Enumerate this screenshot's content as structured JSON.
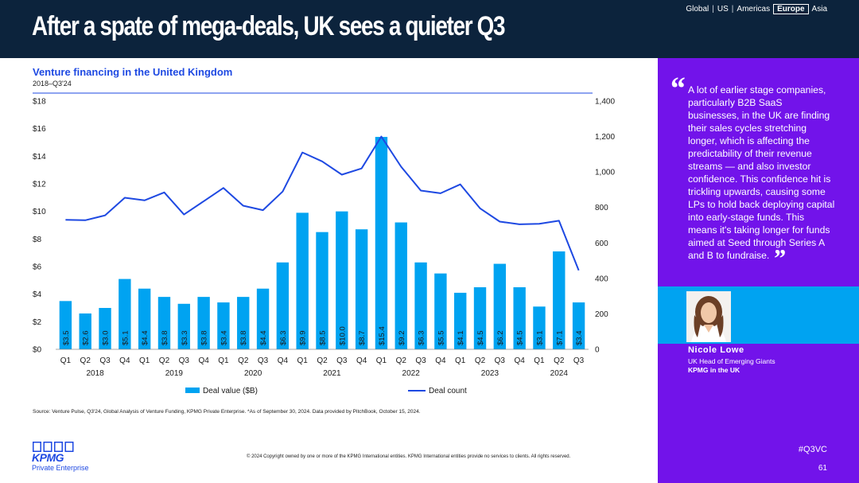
{
  "header": {
    "title": "After a spate of mega-deals, UK sees a quieter Q3",
    "regions": [
      "Global",
      "US",
      "Americas",
      "Europe",
      "Asia"
    ],
    "active_region": "Europe"
  },
  "chart_data": {
    "type": "bar",
    "title": "Venture financing in the United Kingdom",
    "subtitle": "2018–Q3'24",
    "quarters": [
      "Q1",
      "Q2",
      "Q3",
      "Q4",
      "Q1",
      "Q2",
      "Q3",
      "Q4",
      "Q1",
      "Q2",
      "Q3",
      "Q4",
      "Q1",
      "Q2",
      "Q3",
      "Q4",
      "Q1",
      "Q2",
      "Q3",
      "Q4",
      "Q1",
      "Q2",
      "Q3",
      "Q4",
      "Q1",
      "Q2",
      "Q3"
    ],
    "years": [
      "2018",
      "2019",
      "2020",
      "2021",
      "2022",
      "2023",
      "2024"
    ],
    "series": [
      {
        "name": "Deal value ($B)",
        "type": "bar",
        "axis": "left",
        "color": "#00a3f1",
        "values": [
          3.5,
          2.6,
          3.0,
          5.1,
          4.4,
          3.8,
          3.3,
          3.8,
          3.4,
          3.8,
          4.4,
          6.3,
          9.9,
          8.5,
          10.0,
          8.7,
          15.4,
          9.2,
          6.3,
          5.5,
          4.1,
          4.5,
          6.2,
          4.5,
          3.1,
          7.1,
          3.4
        ],
        "labels": [
          "$3.5",
          "$2.6",
          "$3.0",
          "$5.1",
          "$4.4",
          "$3.8",
          "$3.3",
          "$3.8",
          "$3.4",
          "$3.8",
          "$4.4",
          "$6.3",
          "$9.9",
          "$8.5",
          "$10.0",
          "$8.7",
          "$15.4",
          "$9.2",
          "$6.3",
          "$5.5",
          "$4.1",
          "$4.5",
          "$6.2",
          "$4.5",
          "$3.1",
          "$7.1",
          "$3.4"
        ]
      },
      {
        "name": "Deal count",
        "type": "line",
        "axis": "right",
        "color": "#1e49e2",
        "values": [
          730,
          728,
          755,
          855,
          840,
          885,
          760,
          835,
          910,
          810,
          785,
          890,
          1110,
          1060,
          985,
          1020,
          1200,
          1030,
          895,
          880,
          930,
          795,
          720,
          705,
          708,
          725,
          445
        ]
      }
    ],
    "left_axis": {
      "ylim": [
        0,
        18
      ],
      "ticks": [
        "$0",
        "$2",
        "$4",
        "$6",
        "$8",
        "$10",
        "$12",
        "$14",
        "$16",
        "$18"
      ]
    },
    "right_axis": {
      "ylim": [
        0,
        1400
      ],
      "ticks": [
        "0",
        "200",
        "400",
        "600",
        "800",
        "1,000",
        "1,200",
        "1,400"
      ]
    },
    "legend_position": "bottom"
  },
  "quote": {
    "text": "A lot of earlier stage companies, particularly B2B SaaS businesses, in the UK are finding their sales cycles stretching longer, which is affecting the predictability of their revenue streams — and also investor confidence. This confidence hit is trickling upwards, causing some LPs to hold back deploying capital into early-stage funds. This means it's taking longer for funds aimed at Seed through Series A and B to fundraise."
  },
  "person": {
    "name": "Nicole Lowe",
    "role": "UK Head of Emerging Giants",
    "org": "KPMG in the UK"
  },
  "footer": {
    "source": "Source: Venture Pulse, Q3'24, Global Analysis of Venture Funding, KPMG Private Enterprise. *As of September 30, 2024. Data provided by PitchBook, October 15, 2024.",
    "copyright": "© 2024 Copyright owned by one or more of the KPMG International entities. KPMG International entities provide no services to clients. All rights reserved.",
    "brand": "KPMG",
    "brand_sub": "Private Enterprise",
    "hashtag": "#Q3VC",
    "page": "61"
  },
  "colors": {
    "navy": "#0c233c",
    "purple": "#7213ea",
    "cyan": "#00a3f1",
    "blue": "#1e49e2"
  }
}
